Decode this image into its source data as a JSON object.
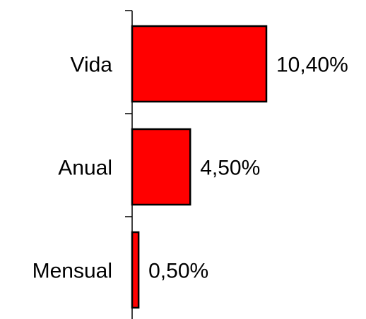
{
  "chart_data": {
    "type": "bar",
    "orientation": "horizontal",
    "categories": [
      "Vida",
      "Anual",
      "Mensual"
    ],
    "values": [
      10.4,
      4.5,
      0.5
    ],
    "value_labels": [
      "10,40%",
      "4,50%",
      "0,50%"
    ],
    "unit": "%",
    "title": "",
    "xlabel": "",
    "ylabel": "",
    "xlim": [
      0,
      10.4
    ],
    "grid": false,
    "legend": "none",
    "bar_color": "#ff0000",
    "bar_edge_color": "#000000"
  }
}
